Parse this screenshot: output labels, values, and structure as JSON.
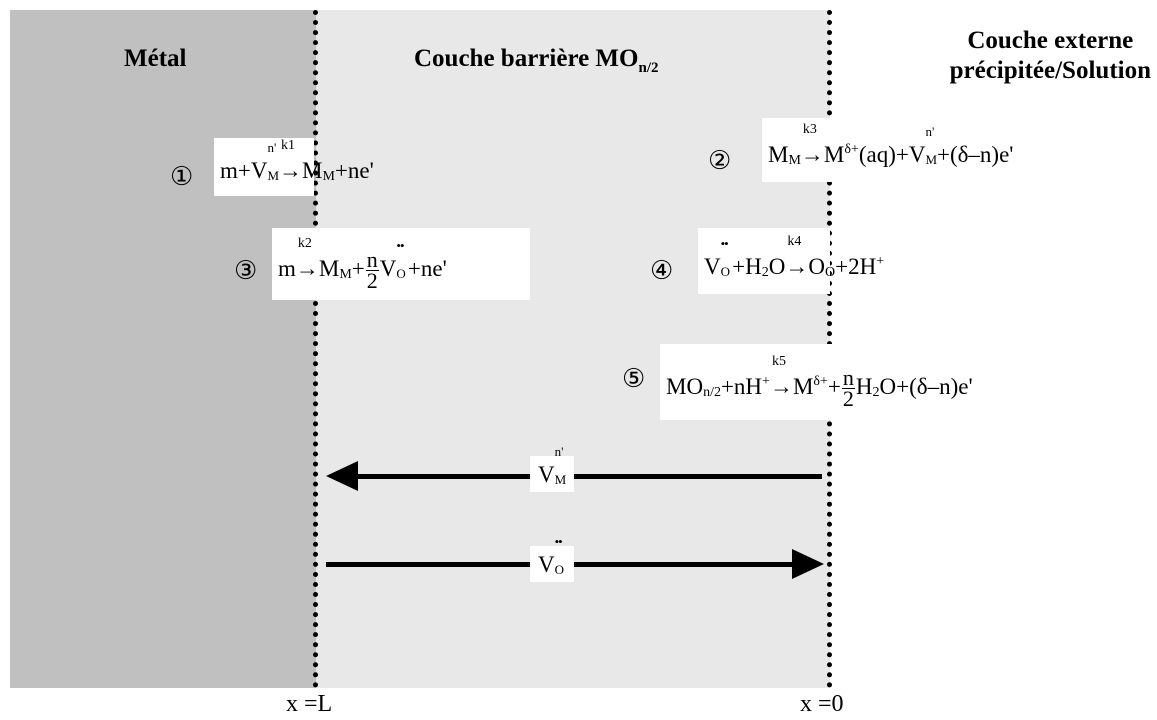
{
  "zones": {
    "metal_title": "Métal",
    "barrier_title": "Couche barrière MO",
    "barrier_sub": "n/2",
    "external_title_line1": "Couche externe",
    "external_title_line2": "précipitée/Solution"
  },
  "reactions": [
    {
      "num": "①",
      "k": "k1"
    },
    {
      "num": "②",
      "k": "k3"
    },
    {
      "num": "③",
      "k": "k2"
    },
    {
      "num": "④",
      "k": "k4"
    },
    {
      "num": "⑤",
      "k": "k5"
    }
  ],
  "fluxes": [
    {
      "species": "V",
      "direction": "left"
    },
    {
      "species": "V",
      "direction": "right"
    }
  ],
  "axis": {
    "left": "x =L",
    "right": "x =0"
  },
  "colors": {
    "metal": "#c0c0c0",
    "barrier": "#e8e8e8",
    "external": "#ffffff"
  }
}
